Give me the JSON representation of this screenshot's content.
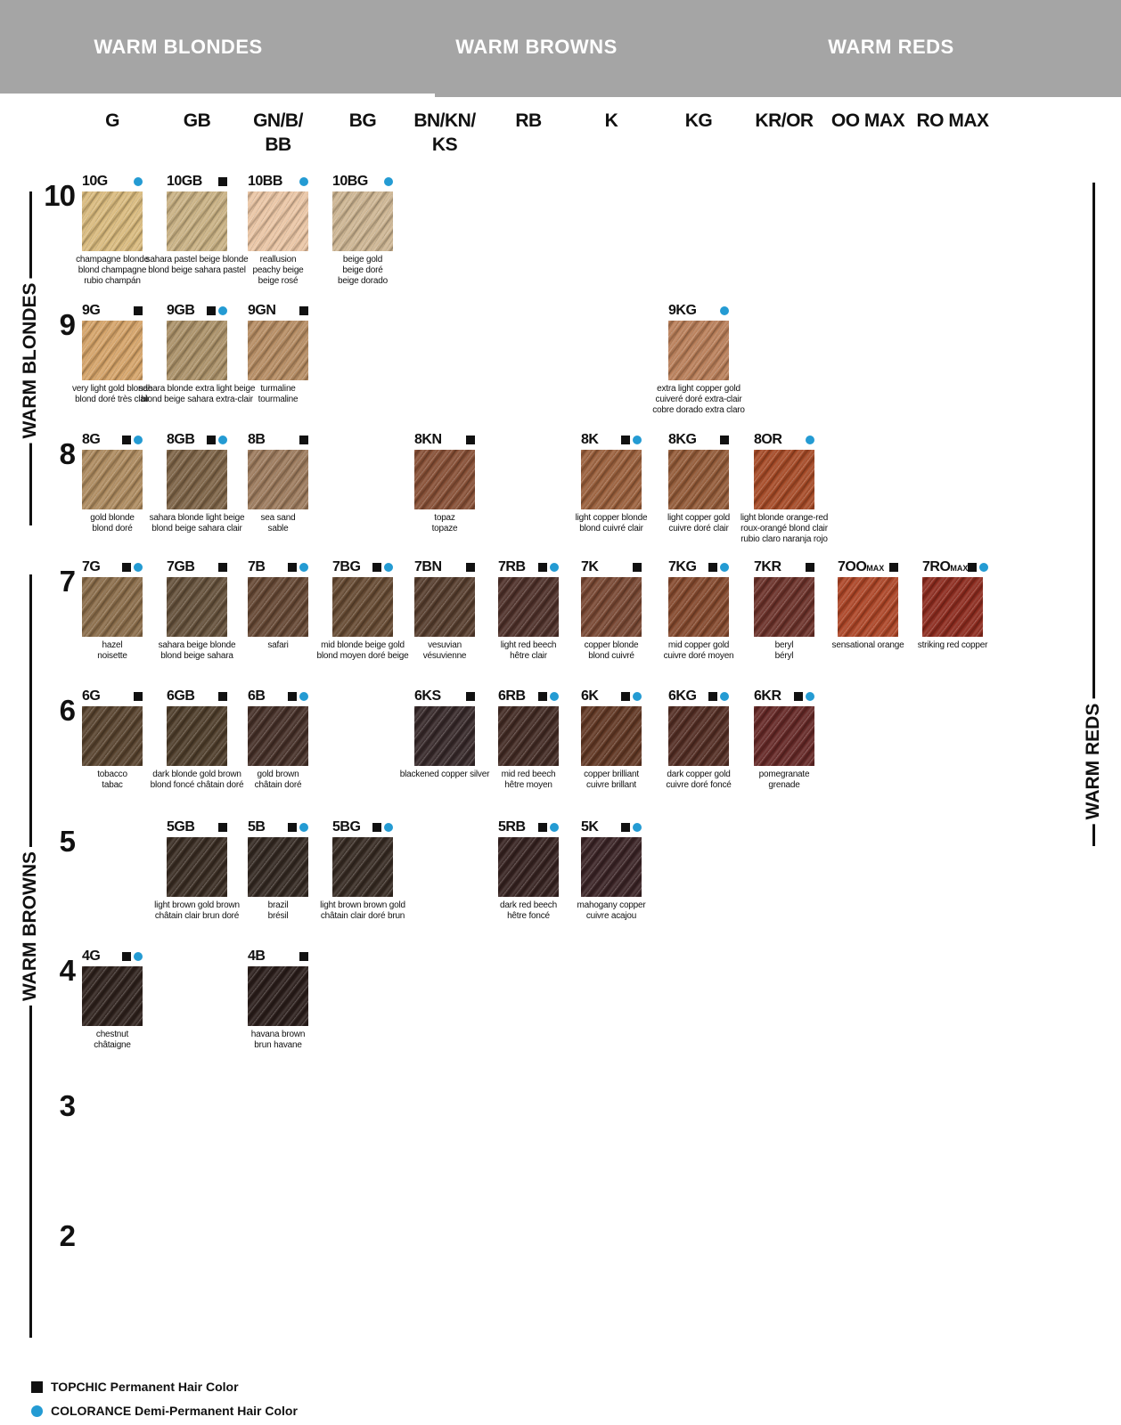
{
  "header": {
    "sections": [
      "WARM BLONDES",
      "WARM BROWNS",
      "WARM REDS"
    ]
  },
  "columns": [
    {
      "id": "G",
      "lines": [
        "G"
      ]
    },
    {
      "id": "GB",
      "lines": [
        "GB"
      ]
    },
    {
      "id": "GN/B/BB",
      "lines": [
        "GN/B/",
        "BB"
      ]
    },
    {
      "id": "BG",
      "lines": [
        "BG"
      ]
    },
    {
      "id": "BN/KN/KS",
      "lines": [
        "BN/KN/",
        "KS"
      ]
    },
    {
      "id": "RB",
      "lines": [
        "RB"
      ]
    },
    {
      "id": "K",
      "lines": [
        "K"
      ]
    },
    {
      "id": "KG",
      "lines": [
        "KG"
      ]
    },
    {
      "id": "KR/OR",
      "lines": [
        "KR/OR"
      ]
    },
    {
      "id": "OO MAX",
      "lines": [
        "OO MAX"
      ]
    },
    {
      "id": "RO MAX",
      "lines": [
        "RO MAX"
      ]
    }
  ],
  "row_levels": [
    "10",
    "9",
    "8",
    "7",
    "6",
    "5",
    "4",
    "3",
    "2"
  ],
  "side_labels": {
    "left_top": "WARM BLONDES",
    "left_bottom": "WARM BROWNS",
    "right": "WARM REDS"
  },
  "legend": [
    {
      "marker": "square",
      "label": "TOPCHIC Permanent Hair Color"
    },
    {
      "marker": "dot",
      "label": "COLORANCE Demi-Permanent Hair Color"
    }
  ],
  "colors": {
    "header_gray": "#a5a5a5",
    "accent_blue": "#249bd3",
    "marker_black": "#111111"
  },
  "swatches": [
    {
      "code": "10G",
      "suffix": "",
      "row": "10",
      "col": "G",
      "topchic": false,
      "colorance": true,
      "color": "#d9ba7d",
      "names": [
        "champagne blonde",
        "blond champagne",
        "rubio champán"
      ]
    },
    {
      "code": "10GB",
      "suffix": "",
      "row": "10",
      "col": "GB",
      "topchic": true,
      "colorance": false,
      "color": "#c9b183",
      "names": [
        "sahara pastel beige blonde",
        "blond beige sahara pastel"
      ]
    },
    {
      "code": "10BB",
      "suffix": "",
      "row": "10",
      "col": "GN/B/BB",
      "topchic": false,
      "colorance": true,
      "color": "#eac5a4",
      "names": [
        "reallusion",
        "peachy beige",
        "beige rosé"
      ]
    },
    {
      "code": "10BG",
      "suffix": "",
      "row": "10",
      "col": "BG",
      "topchic": false,
      "colorance": true,
      "color": "#cdb592",
      "names": [
        "beige gold",
        "beige doré",
        "beige dorado"
      ]
    },
    {
      "code": "9G",
      "suffix": "",
      "row": "9",
      "col": "G",
      "topchic": true,
      "colorance": false,
      "color": "#d5a368",
      "names": [
        "very light gold blonde",
        "blond doré très clair"
      ]
    },
    {
      "code": "9GB",
      "suffix": "",
      "row": "9",
      "col": "GB",
      "topchic": true,
      "colorance": true,
      "color": "#ab9168",
      "names": [
        "sahara blonde extra light beige",
        "blond beige sahara extra-clair"
      ]
    },
    {
      "code": "9GN",
      "suffix": "",
      "row": "9",
      "col": "GN/B/BB",
      "topchic": true,
      "colorance": false,
      "color": "#b68c62",
      "names": [
        "turmaline",
        "tourmaline"
      ]
    },
    {
      "code": "9KG",
      "suffix": "",
      "row": "9",
      "col": "KG",
      "topchic": false,
      "colorance": true,
      "color": "#b97e58",
      "names": [
        "extra light copper gold",
        "cuiveré doré extra-clair",
        "cobre dorado extra claro"
      ]
    },
    {
      "code": "8G",
      "suffix": "",
      "row": "8",
      "col": "G",
      "topchic": true,
      "colorance": true,
      "color": "#ad8a5e",
      "names": [
        "gold blonde",
        "blond doré"
      ]
    },
    {
      "code": "8GB",
      "suffix": "",
      "row": "8",
      "col": "GB",
      "topchic": true,
      "colorance": true,
      "color": "#7d6346",
      "names": [
        "sahara blonde light beige",
        "blond beige sahara clair"
      ]
    },
    {
      "code": "8B",
      "suffix": "",
      "row": "8",
      "col": "GN/B/BB",
      "topchic": true,
      "colorance": false,
      "color": "#9c7a5c",
      "names": [
        "sea sand",
        "sable"
      ]
    },
    {
      "code": "8KN",
      "suffix": "",
      "row": "8",
      "col": "BN/KN/KS",
      "topchic": true,
      "colorance": false,
      "color": "#874f35",
      "names": [
        "topaz",
        "topaze"
      ]
    },
    {
      "code": "8K",
      "suffix": "",
      "row": "8",
      "col": "K",
      "topchic": true,
      "colorance": true,
      "color": "#9a5f3b",
      "names": [
        "light copper blonde",
        "blond cuivré clair"
      ]
    },
    {
      "code": "8KG",
      "suffix": "",
      "row": "8",
      "col": "KG",
      "topchic": true,
      "colorance": false,
      "color": "#935a37",
      "names": [
        "light copper gold",
        "cuivre doré clair"
      ]
    },
    {
      "code": "8OR",
      "suffix": "",
      "row": "8",
      "col": "KR/OR",
      "topchic": false,
      "colorance": true,
      "color": "#a64a26",
      "names": [
        "light blonde orange-red",
        "roux-orangé blond clair",
        "rubio claro naranja rojo"
      ]
    },
    {
      "code": "7G",
      "suffix": "",
      "row": "7",
      "col": "G",
      "topchic": true,
      "colorance": true,
      "color": "#8a6c49",
      "names": [
        "hazel",
        "noisette"
      ]
    },
    {
      "code": "7GB",
      "suffix": "",
      "row": "7",
      "col": "GB",
      "topchic": true,
      "colorance": false,
      "color": "#64503a",
      "names": [
        "sahara beige blonde",
        "blond beige sahara"
      ]
    },
    {
      "code": "7B",
      "suffix": "",
      "row": "7",
      "col": "GN/B/BB",
      "topchic": true,
      "colorance": true,
      "color": "#654733",
      "names": [
        "safari"
      ]
    },
    {
      "code": "7BG",
      "suffix": "",
      "row": "7",
      "col": "BG",
      "topchic": true,
      "colorance": true,
      "color": "#664a32",
      "names": [
        "mid blonde beige gold",
        "blond moyen doré beige"
      ]
    },
    {
      "code": "7BN",
      "suffix": "",
      "row": "7",
      "col": "BN/KN/KS",
      "topchic": true,
      "colorance": false,
      "color": "#563d2d",
      "names": [
        "vesuvian",
        "vésuvienne"
      ]
    },
    {
      "code": "7RB",
      "suffix": "",
      "row": "7",
      "col": "RB",
      "topchic": true,
      "colorance": true,
      "color": "#4e3029",
      "names": [
        "light red beech",
        "hêtre clair"
      ]
    },
    {
      "code": "7K",
      "suffix": "",
      "row": "7",
      "col": "K",
      "topchic": true,
      "colorance": false,
      "color": "#784732",
      "names": [
        "copper blonde",
        "blond cuivré"
      ]
    },
    {
      "code": "7KG",
      "suffix": "",
      "row": "7",
      "col": "KG",
      "topchic": true,
      "colorance": true,
      "color": "#85492d",
      "names": [
        "mid copper gold",
        "cuivre doré moyen"
      ]
    },
    {
      "code": "7KR",
      "suffix": "",
      "row": "7",
      "col": "KR/OR",
      "topchic": true,
      "colorance": false,
      "color": "#6b3129",
      "names": [
        "beryl",
        "béryl"
      ]
    },
    {
      "code": "7OO",
      "suffix": "MAX",
      "row": "7",
      "col": "OO MAX",
      "topchic": true,
      "colorance": false,
      "color": "#ad4526",
      "names": [
        "sensational orange"
      ]
    },
    {
      "code": "7RO",
      "suffix": "MAX",
      "row": "7",
      "col": "RO MAX",
      "topchic": true,
      "colorance": true,
      "color": "#8d2b1e",
      "names": [
        "striking red copper"
      ]
    },
    {
      "code": "6G",
      "suffix": "",
      "row": "6",
      "col": "G",
      "topchic": true,
      "colorance": false,
      "color": "#57422d",
      "names": [
        "tobacco",
        "tabac"
      ]
    },
    {
      "code": "6GB",
      "suffix": "",
      "row": "6",
      "col": "GB",
      "topchic": true,
      "colorance": false,
      "color": "#4e3d2a",
      "names": [
        "dark blonde gold brown",
        "blond foncé châtain doré"
      ]
    },
    {
      "code": "6B",
      "suffix": "",
      "row": "6",
      "col": "GN/B/BB",
      "topchic": true,
      "colorance": true,
      "color": "#452f27",
      "names": [
        "gold brown",
        "châtain doré"
      ]
    },
    {
      "code": "6KS",
      "suffix": "",
      "row": "6",
      "col": "BN/KN/KS",
      "topchic": true,
      "colorance": false,
      "color": "#362829",
      "names": [
        "blackened copper silver"
      ]
    },
    {
      "code": "6RB",
      "suffix": "",
      "row": "6",
      "col": "RB",
      "topchic": true,
      "colorance": true,
      "color": "#422a23",
      "names": [
        "mid red beech",
        "hêtre moyen"
      ]
    },
    {
      "code": "6K",
      "suffix": "",
      "row": "6",
      "col": "K",
      "topchic": true,
      "colorance": true,
      "color": "#623824",
      "names": [
        "copper brilliant",
        "cuivre brillant"
      ]
    },
    {
      "code": "6KG",
      "suffix": "",
      "row": "6",
      "col": "KG",
      "topchic": true,
      "colorance": true,
      "color": "#532d23",
      "names": [
        "dark copper gold",
        "cuivre doré foncé"
      ]
    },
    {
      "code": "6KR",
      "suffix": "",
      "row": "6",
      "col": "KR/OR",
      "topchic": true,
      "colorance": true,
      "color": "#652826",
      "names": [
        "pomegranate",
        "grenade"
      ]
    },
    {
      "code": "5GB",
      "suffix": "",
      "row": "5",
      "col": "GB",
      "topchic": true,
      "colorance": false,
      "color": "#392c22",
      "names": [
        "light brown gold brown",
        "châtain clair brun doré"
      ]
    },
    {
      "code": "5B",
      "suffix": "",
      "row": "5",
      "col": "GN/B/BB",
      "topchic": true,
      "colorance": true,
      "color": "#332821",
      "names": [
        "brazil",
        "brésil"
      ]
    },
    {
      "code": "5BG",
      "suffix": "",
      "row": "5",
      "col": "BG",
      "topchic": true,
      "colorance": true,
      "color": "#362a22",
      "names": [
        "light brown brown gold",
        "châtain clair doré brun"
      ]
    },
    {
      "code": "5RB",
      "suffix": "",
      "row": "5",
      "col": "RB",
      "topchic": true,
      "colorance": true,
      "color": "#362220",
      "names": [
        "dark red beech",
        "hêtre foncé"
      ]
    },
    {
      "code": "5K",
      "suffix": "",
      "row": "5",
      "col": "K",
      "topchic": true,
      "colorance": true,
      "color": "#3a2325",
      "names": [
        "mahogany copper",
        "cuivre acajou"
      ]
    },
    {
      "code": "4G",
      "suffix": "",
      "row": "4",
      "col": "G",
      "topchic": true,
      "colorance": true,
      "color": "#2e211c",
      "names": [
        "chestnut",
        "châtaigne"
      ]
    },
    {
      "code": "4B",
      "suffix": "",
      "row": "4",
      "col": "GN/B/BB",
      "topchic": true,
      "colorance": false,
      "color": "#2a1d1a",
      "names": [
        "havana brown",
        "brun havane"
      ]
    }
  ]
}
